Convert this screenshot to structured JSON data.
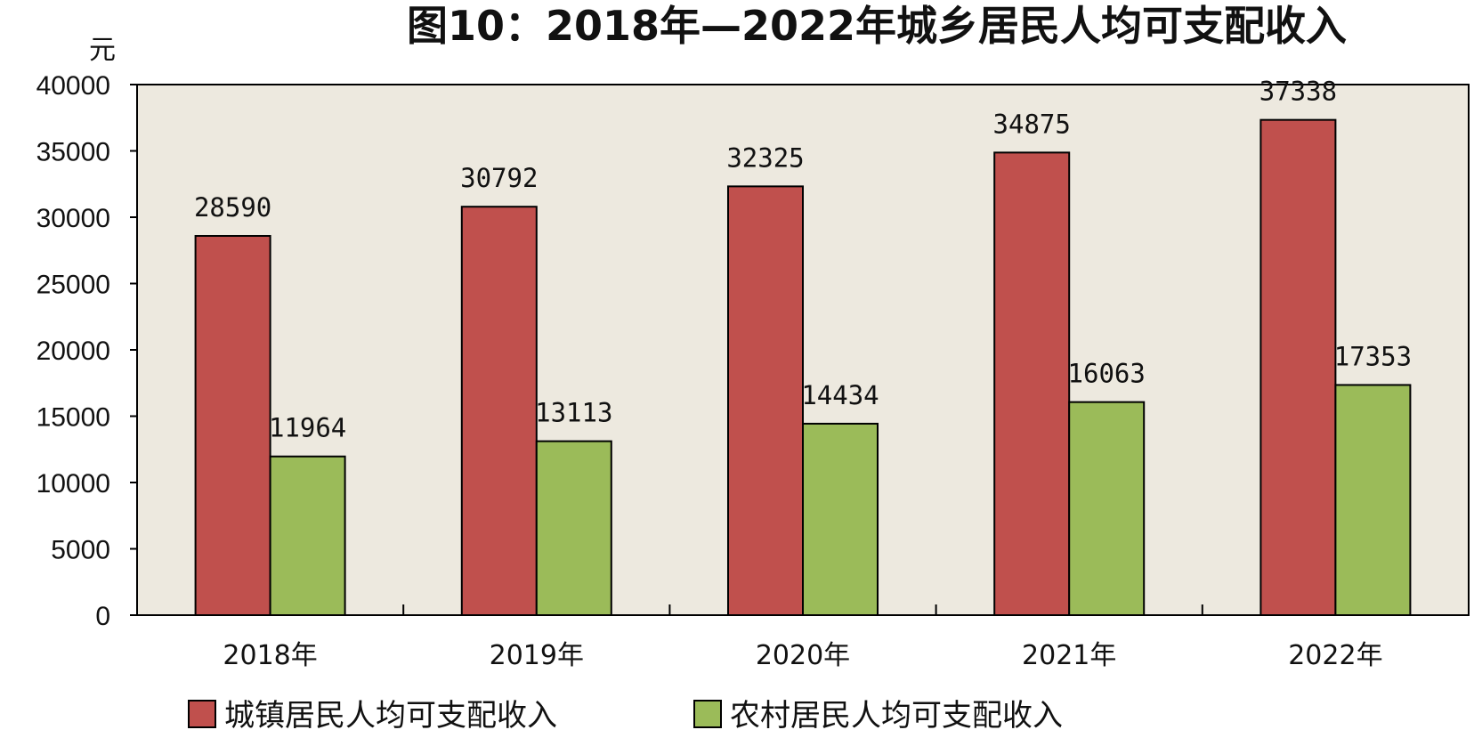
{
  "chart_data": {
    "type": "bar",
    "title": "图10：2018年—2022年城乡居民人均可支配收入",
    "ylabel": "元",
    "xlabel": "",
    "ylim": [
      0,
      40000
    ],
    "yticks": [
      0,
      5000,
      10000,
      15000,
      20000,
      25000,
      30000,
      35000,
      40000
    ],
    "categories": [
      "2018年",
      "2019年",
      "2020年",
      "2021年",
      "2022年"
    ],
    "series": [
      {
        "name": "城镇居民人均可支配收入",
        "color": "#c0504d",
        "values": [
          28590,
          30792,
          32325,
          34875,
          37338
        ]
      },
      {
        "name": "农村居民人均可支配收入",
        "color": "#9bbb59",
        "values": [
          11964,
          13113,
          14434,
          16063,
          17353
        ]
      }
    ],
    "grid": false,
    "legend": "bottom",
    "plot_background": "#ede9df"
  }
}
